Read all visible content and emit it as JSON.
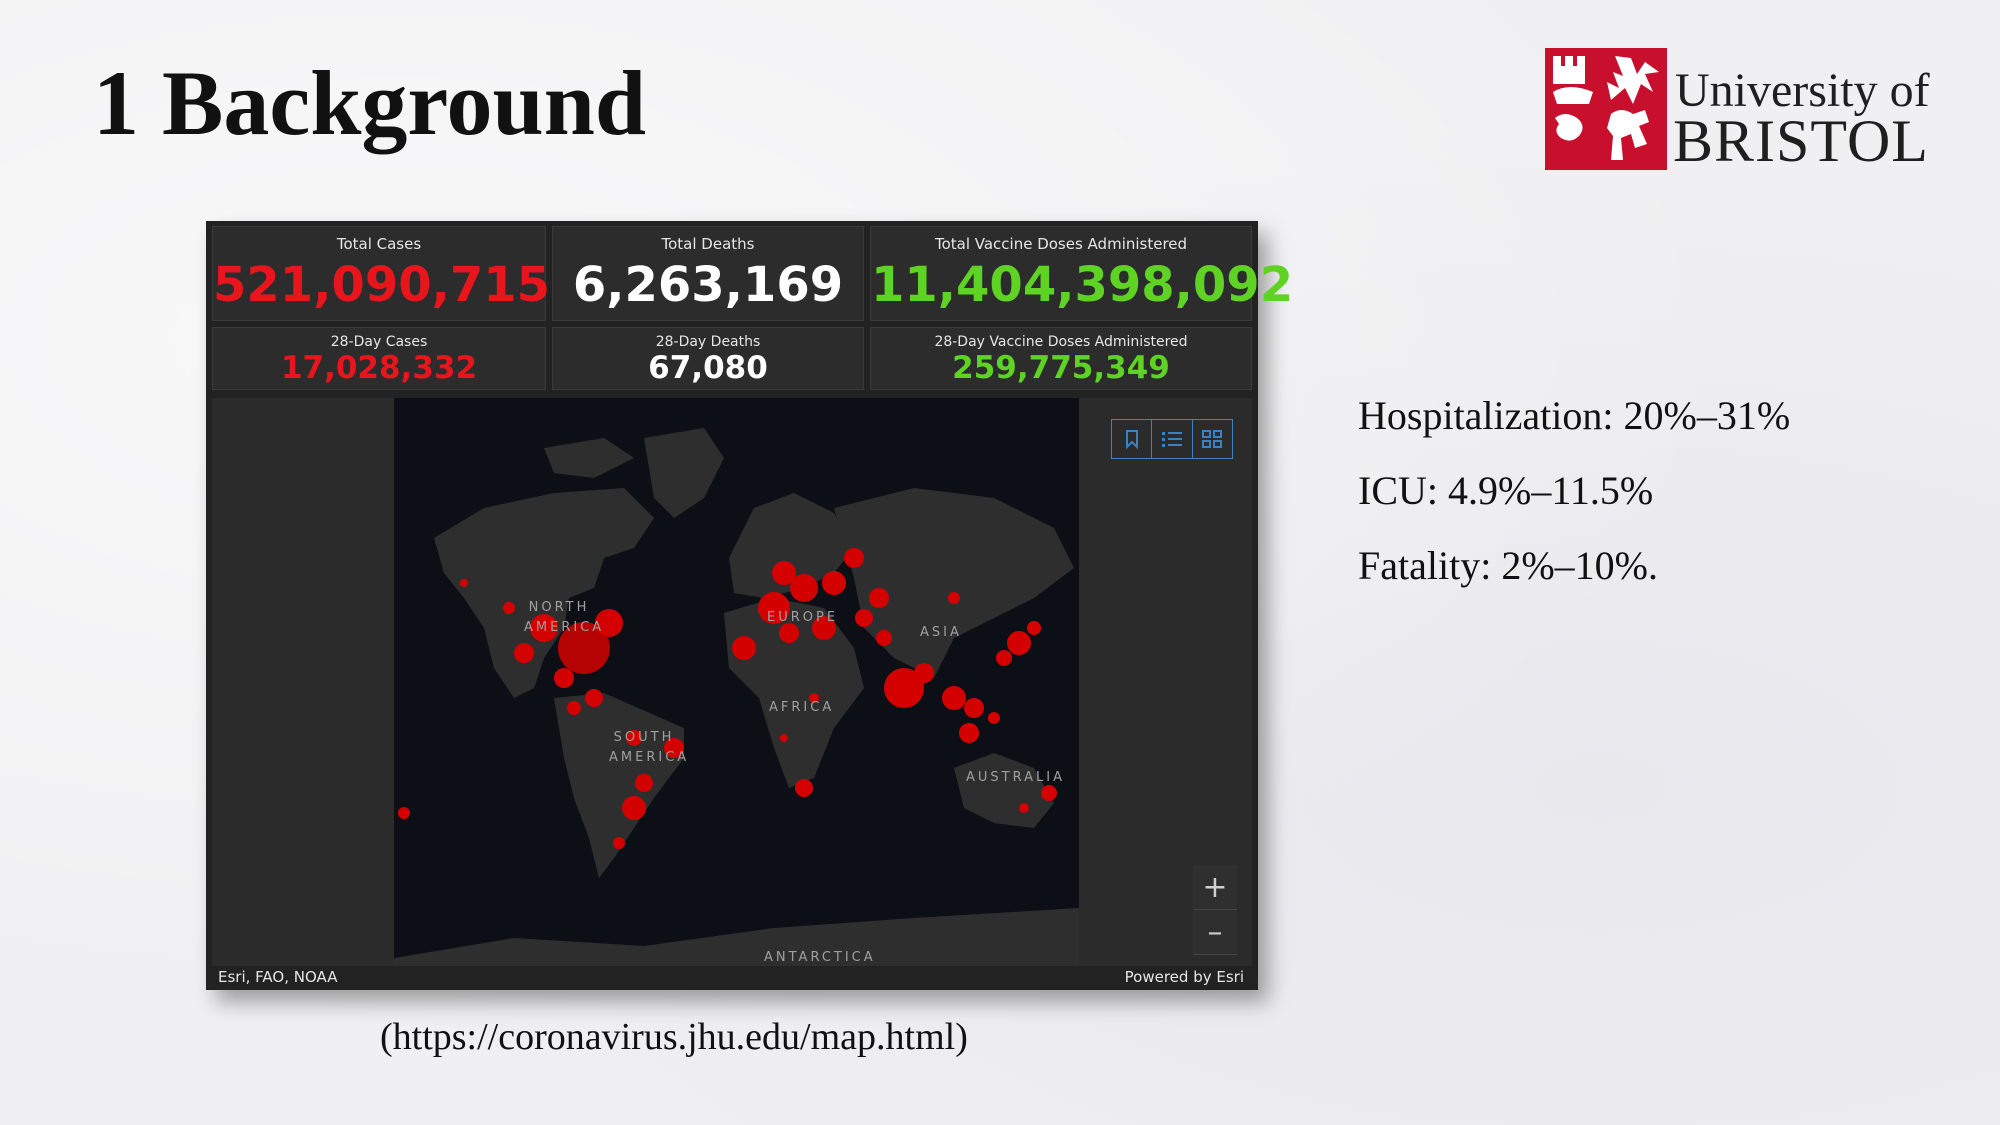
{
  "slide": {
    "title": "1 Background",
    "source_link": "(https://coronavirus.jhu.edu/map.html)",
    "stats": [
      "Hospitalization: 20%–31%",
      "ICU: 4.9%–11.5%",
      "Fatality: 2%–10%."
    ]
  },
  "logo": {
    "line1": "University of",
    "line2": "BRISTOL",
    "color": "#c8102e"
  },
  "dashboard": {
    "total_cases": {
      "label": "Total Cases",
      "value": "521,090,715",
      "color": "#e8161c"
    },
    "total_deaths": {
      "label": "Total Deaths",
      "value": "6,263,169",
      "color": "#ffffff"
    },
    "total_vaccine": {
      "label": "Total Vaccine Doses Administered",
      "value": "11,404,398,092",
      "color": "#5fd324"
    },
    "cases_28": {
      "label": "28-Day Cases",
      "value": "17,028,332",
      "color": "#e8161c"
    },
    "deaths_28": {
      "label": "28-Day Deaths",
      "value": "67,080",
      "color": "#ffffff"
    },
    "vaccine_28": {
      "label": "28-Day Vaccine Doses Administered",
      "value": "259,775,349",
      "color": "#5fd324"
    },
    "map": {
      "labels": {
        "north_america": "NORTH AMERICA",
        "south_america": "SOUTH AMERICA",
        "europe": "EUROPE",
        "africa": "AFRICA",
        "asia": "ASIA",
        "australia": "AUSTRALIA",
        "antarctica": "ANTARCTICA"
      },
      "toolbar": [
        "bookmark-icon",
        "list-icon",
        "grid-icon"
      ],
      "zoom_in": "+",
      "zoom_out": "–"
    },
    "footer": {
      "attribution": "Esri, FAO, NOAA",
      "powered": "Powered by Esri"
    }
  }
}
